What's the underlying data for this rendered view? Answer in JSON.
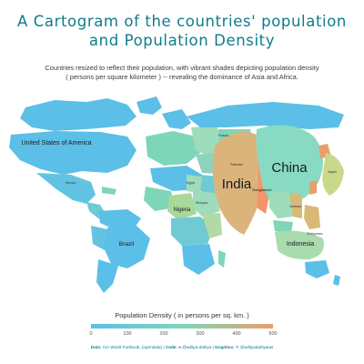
{
  "title_line1": "A Cartogram of the countries' population",
  "title_line2": "and Population Density",
  "subtitle_line1": "Countries resized to reflect their population, with vibrant shades depicting population density",
  "subtitle_line2": "( persons per square kilometer ) -- revealing the dominance of Asia and Africa.",
  "colors": {
    "low": "#5bbfe8",
    "mid": "#7ed6b8",
    "high": "#e8a06a",
    "title": "#0f7c8a"
  },
  "map": {
    "major_labels": {
      "usa": "United States of America",
      "india": "India",
      "china": "China",
      "nigeria": "Nigeria",
      "brazil": "Brazil",
      "indonesia": "Indonesia",
      "bangladesh": "Bangladesh"
    },
    "minor_labels": {
      "russia": "Russia",
      "mexico": "Mexico",
      "japan": "Japan",
      "philippines": "Philippines",
      "pakistan": "Pakistan",
      "egypt": "Egypt",
      "ethiopia": "Ethiopia",
      "vietnam": "Vietnam"
    }
  },
  "legend": {
    "title": "Population Density ( in persons per sq. km. )",
    "ticks": [
      "0",
      "100",
      "200",
      "300",
      "400",
      "500"
    ]
  },
  "caption": {
    "data_label": "Data:",
    "data_text": "CIA World Factbook, (opendata)",
    "code_label": "Code:",
    "code_text": "@aditya-dahiya",
    "graphics_label": "Graphics:",
    "graphics_text": "@adityadahiyaias"
  }
}
